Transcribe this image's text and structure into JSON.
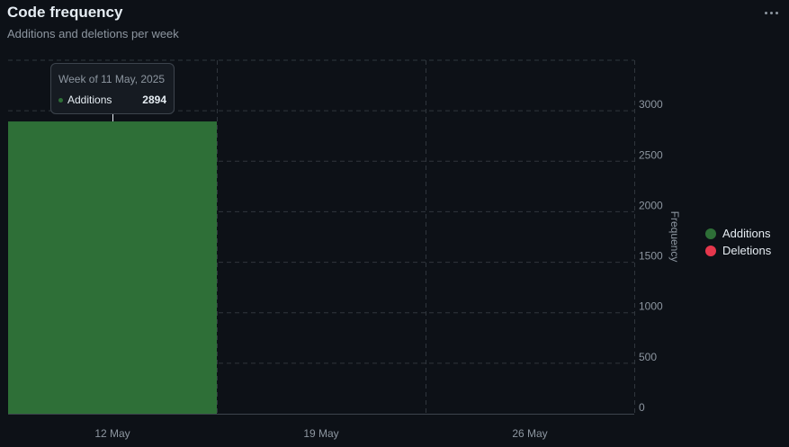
{
  "header": {
    "title": "Code frequency",
    "subtitle": "Additions and deletions per week"
  },
  "menu": {
    "icon": "kebab-horizontal-icon"
  },
  "colors": {
    "additions": "#2e6f37",
    "deletions": "#e5374c",
    "grid": "#30363d",
    "background": "#0d1117"
  },
  "tooltip": {
    "title": "Week of 11 May, 2025",
    "label": "Additions",
    "value": "2894"
  },
  "chart_data": {
    "type": "bar",
    "title": "Code frequency",
    "subtitle": "Additions and deletions per week",
    "xlabel": "",
    "ylabel": "Frequency",
    "ylim": [
      0,
      3500
    ],
    "yticks": [
      0,
      500,
      1000,
      1500,
      2000,
      2500,
      3000
    ],
    "grid": true,
    "y_axis_side": "right",
    "legend_position": "right",
    "categories": [
      "12 May",
      "19 May",
      "26 May"
    ],
    "series": [
      {
        "name": "Additions",
        "color": "#2e6f37",
        "values": [
          2894,
          null,
          null
        ]
      },
      {
        "name": "Deletions",
        "color": "#e5374c",
        "values": [
          null,
          null,
          null
        ]
      }
    ]
  }
}
